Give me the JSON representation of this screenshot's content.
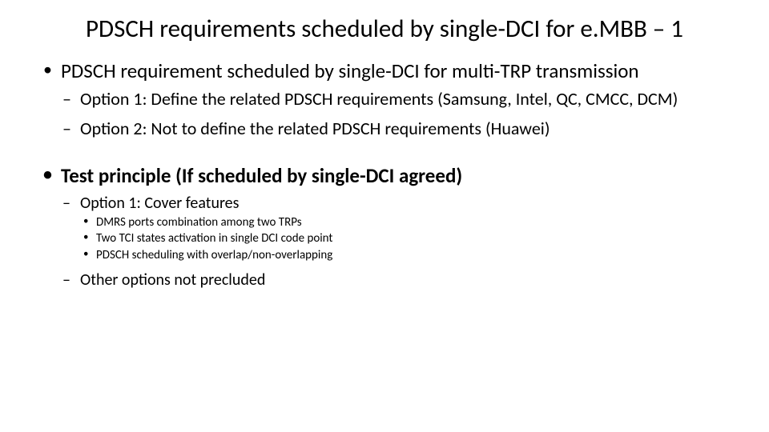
{
  "title": "PDSCH requirements scheduled by single-DCI for e.MBB – 1",
  "section1": {
    "bullet": "PDSCH requirement scheduled by single-DCI for multi-TRP transmission",
    "options": [
      "Option 1: Define the related PDSCH requirements (Samsung, Intel, QC, CMCC, DCM)",
      "Option 2: Not to define the related PDSCH requirements (Huawei)"
    ]
  },
  "section2": {
    "bullet": "Test principle (If scheduled by single-DCI agreed)",
    "opt1": "Option 1: Cover features",
    "features": [
      "DMRS ports combination among two TRPs",
      "Two TCI states activation in single DCI code point",
      "PDSCH scheduling with overlap/non-overlapping"
    ],
    "other": "Other options not precluded"
  }
}
